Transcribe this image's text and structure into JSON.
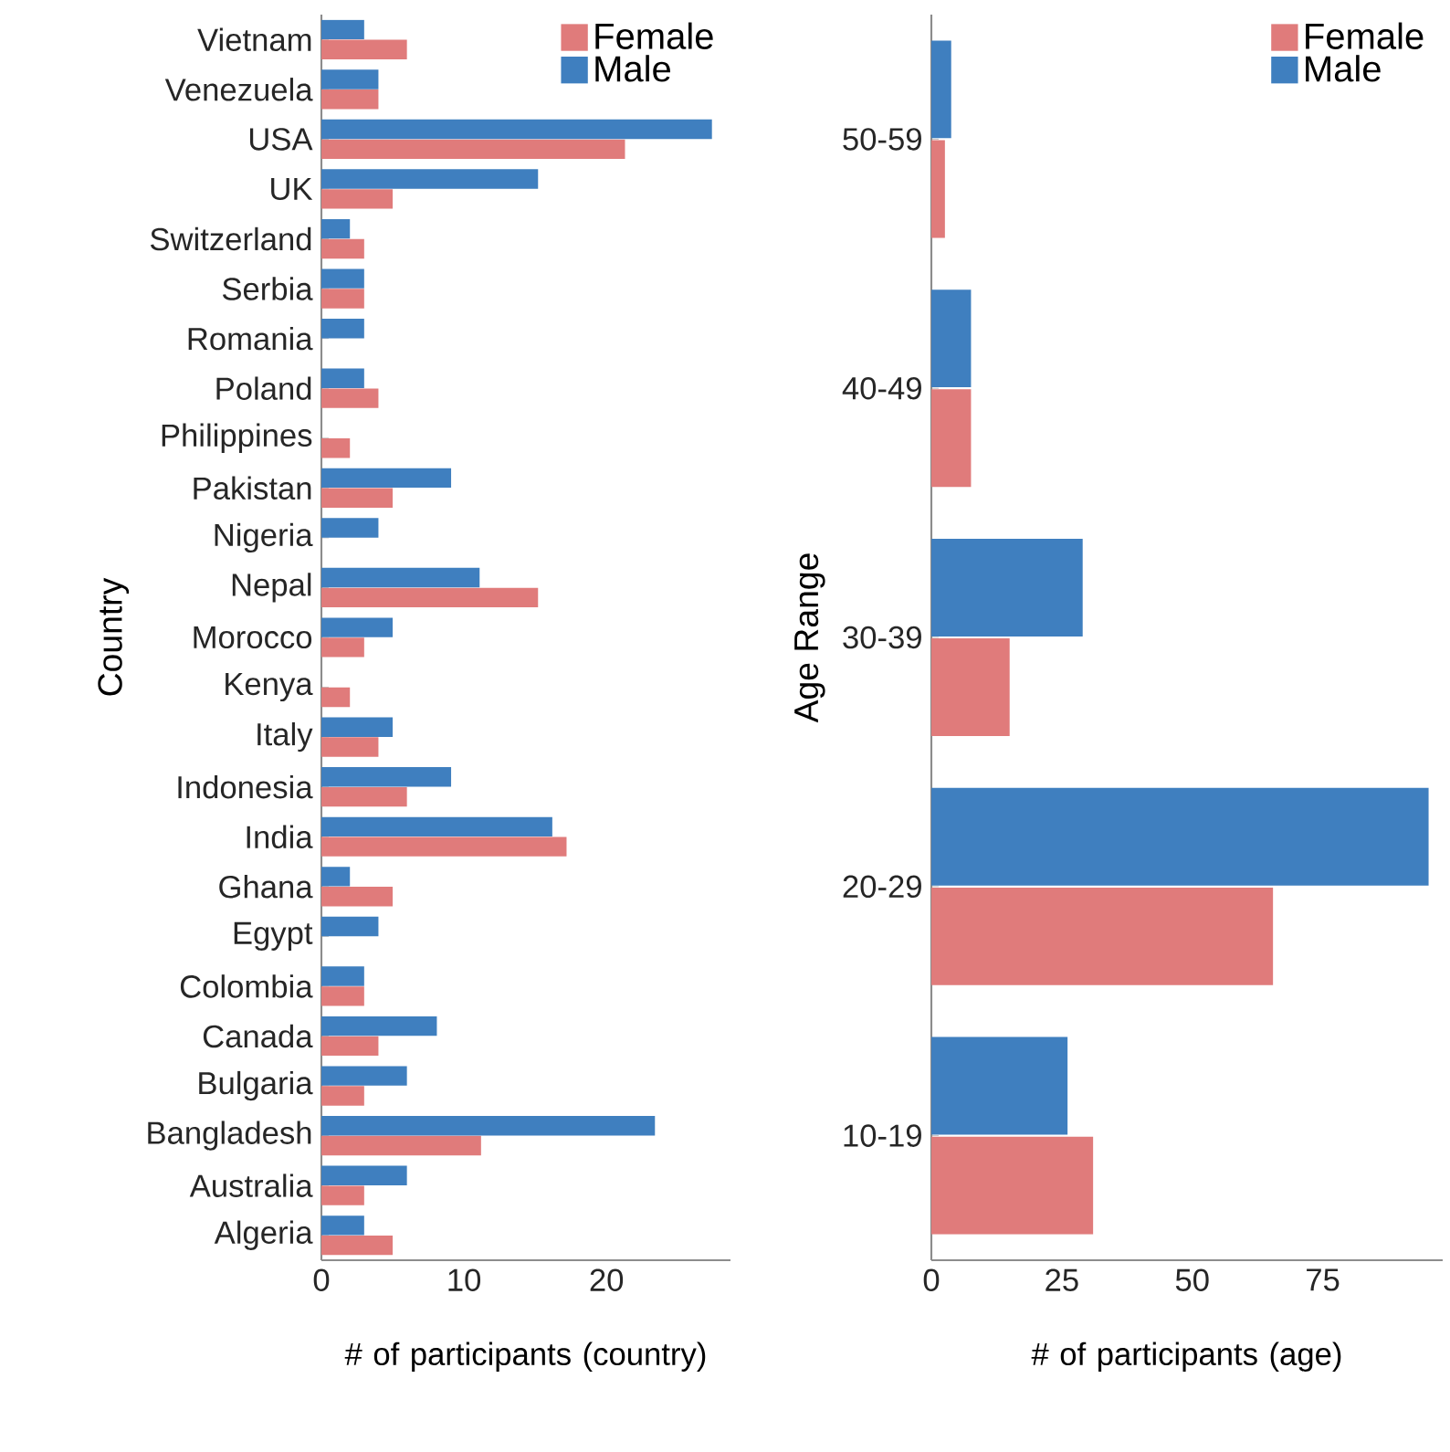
{
  "chart_data": [
    {
      "type": "bar",
      "orientation": "horizontal",
      "xlabel": "# of participants (country)",
      "ylabel": "Country",
      "categories": [
        "Vietnam",
        "Venezuela",
        "USA",
        "UK",
        "Switzerland",
        "Serbia",
        "Romania",
        "Poland",
        "Philippines",
        "Pakistan",
        "Nigeria",
        "Nepal",
        "Morocco",
        "Kenya",
        "Italy",
        "Indonesia",
        "India",
        "Ghana",
        "Egypt",
        "Colombia",
        "Canada",
        "Bulgaria",
        "Bangladesh",
        "Australia",
        "Algeria"
      ],
      "series": [
        {
          "name": "Female",
          "color": "#e07b7b",
          "values": [
            6,
            4,
            21.3,
            5,
            3,
            3,
            null,
            4,
            2,
            5,
            null,
            15.2,
            3,
            2,
            4,
            6,
            17.2,
            5,
            null,
            3,
            4,
            3,
            11.2,
            3,
            5
          ]
        },
        {
          "name": "Male",
          "color": "#3f7fbf",
          "values": [
            3,
            4,
            27.4,
            15.2,
            2,
            3,
            3,
            3,
            null,
            9.1,
            4,
            11.1,
            5,
            null,
            5,
            9.1,
            16.2,
            2,
            4,
            3,
            8.1,
            6,
            23.4,
            6,
            3
          ]
        }
      ],
      "xlim": [
        0,
        28.7
      ],
      "xticks": [
        0,
        10,
        20
      ],
      "legend": "top right",
      "grid": false
    },
    {
      "type": "bar",
      "orientation": "horizontal",
      "xlabel": "# of participants (age)",
      "ylabel": "Age Range",
      "categories": [
        "50-59",
        "40-49",
        "30-39",
        "20-29",
        "10-19"
      ],
      "series": [
        {
          "name": "Female",
          "color": "#e07b7b",
          "values": [
            2.6,
            7.6,
            15,
            65.5,
            31
          ]
        },
        {
          "name": "Male",
          "color": "#3f7fbf",
          "values": [
            3.8,
            7.6,
            29,
            95.3,
            26.1
          ]
        }
      ],
      "xlim": [
        0,
        98
      ],
      "xticks": [
        0,
        25,
        50,
        75
      ],
      "legend": "top right",
      "grid": false
    }
  ]
}
